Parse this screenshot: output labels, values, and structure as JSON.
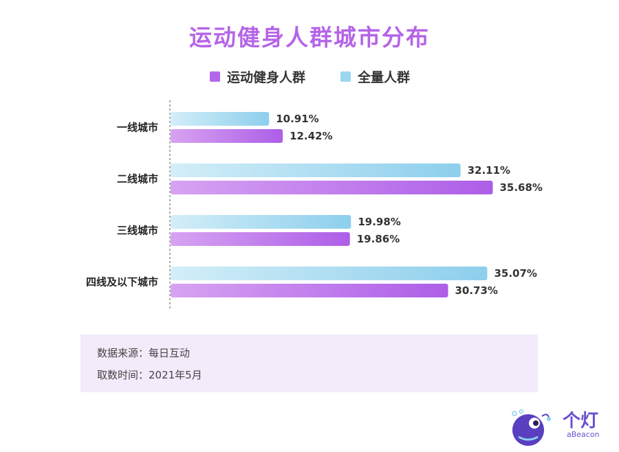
{
  "chart_data": {
    "type": "bar",
    "orientation": "horizontal",
    "title": "运动健身人群城市分布",
    "categories": [
      "一线城市",
      "二线城市",
      "三线城市",
      "四线及以下城市"
    ],
    "series": [
      {
        "name": "全量人群",
        "values": [
          10.91,
          32.11,
          19.98,
          35.07
        ],
        "labels": [
          "10.91%",
          "32.11%",
          "19.98%",
          "35.07%"
        ],
        "color": "#9ad7ee"
      },
      {
        "name": "运动健身人群",
        "values": [
          12.42,
          35.68,
          19.86,
          30.73
        ],
        "labels": [
          "12.42%",
          "35.68%",
          "19.86%",
          "30.73%"
        ],
        "color": "#b366e9"
      }
    ],
    "legend_order": [
      "运动健身人群",
      "全量人群"
    ],
    "legend_position": "top-center",
    "value_axis_range": [
      0,
      36
    ],
    "grid": false,
    "xlabel": "",
    "ylabel": ""
  },
  "footer": {
    "source_line": "数据来源：每日互动",
    "time_line": "取数时间：2021年5月"
  },
  "logo": {
    "name_cn": "个灯",
    "name_en": "aBeacon"
  },
  "colors": {
    "title": "#b564e8",
    "fitness_bar": "#b366e9",
    "all_bar": "#9ad7ee",
    "source_box": "#f3eafa",
    "logo": "#6b4fd0"
  }
}
